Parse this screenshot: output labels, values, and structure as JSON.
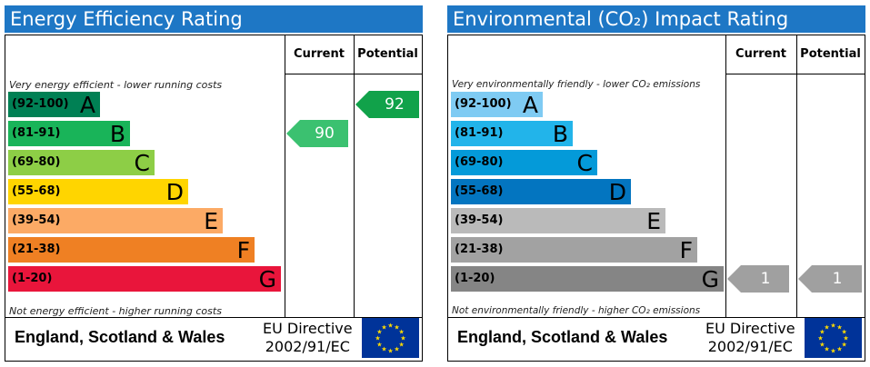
{
  "chart_data": [
    {
      "type": "bar",
      "title": "Energy Efficiency Rating",
      "columns": [
        "Current",
        "Potential"
      ],
      "top_note": "Very energy efficient - lower running costs",
      "bottom_note": "Not energy efficient - higher running costs",
      "bands": [
        {
          "range": "(92-100)",
          "letter": "A",
          "color": "#008054",
          "text_color": "#000000"
        },
        {
          "range": "(81-91)",
          "letter": "B",
          "color": "#19b459",
          "text_color": "#000000"
        },
        {
          "range": "(69-80)",
          "letter": "C",
          "color": "#8dce46",
          "text_color": "#000000"
        },
        {
          "range": "(55-68)",
          "letter": "D",
          "color": "#ffd500",
          "text_color": "#000000"
        },
        {
          "range": "(39-54)",
          "letter": "E",
          "color": "#fcaa65",
          "text_color": "#000000"
        },
        {
          "range": "(21-38)",
          "letter": "F",
          "color": "#ef8023",
          "text_color": "#000000"
        },
        {
          "range": "(1-20)",
          "letter": "G",
          "color": "#e9153b",
          "text_color": "#000000"
        }
      ],
      "current": {
        "value": "90",
        "band": "B",
        "color": "#3bc170"
      },
      "potential": {
        "value": "92",
        "band": "A",
        "color": "#11a24a"
      },
      "footer_place": "England, Scotland & Wales",
      "footer_directive": [
        "EU Directive",
        "2002/91/EC"
      ]
    },
    {
      "type": "bar",
      "title": "Environmental (CO₂) Impact Rating",
      "columns": [
        "Current",
        "Potential"
      ],
      "top_note": "Very environmentally friendly - lower CO₂ emissions",
      "bottom_note": "Not environmentally friendly - higher CO₂ emissions",
      "bands": [
        {
          "range": "(92-100)",
          "letter": "A",
          "color": "#7fcbf3",
          "text_color": "#000000"
        },
        {
          "range": "(81-91)",
          "letter": "B",
          "color": "#22b4ea",
          "text_color": "#000000"
        },
        {
          "range": "(69-80)",
          "letter": "C",
          "color": "#049ad9",
          "text_color": "#000000"
        },
        {
          "range": "(55-68)",
          "letter": "D",
          "color": "#0375c0",
          "text_color": "#000000"
        },
        {
          "range": "(39-54)",
          "letter": "E",
          "color": "#bababa",
          "text_color": "#000000"
        },
        {
          "range": "(21-38)",
          "letter": "F",
          "color": "#a2a2a2",
          "text_color": "#000000"
        },
        {
          "range": "(1-20)",
          "letter": "G",
          "color": "#858585",
          "text_color": "#000000"
        }
      ],
      "current": {
        "value": "1",
        "band": "G",
        "color": "#a0a0a0"
      },
      "potential": {
        "value": "1",
        "band": "G",
        "color": "#a0a0a0"
      },
      "footer_place": "England, Scotland & Wales",
      "footer_directive": [
        "EU Directive",
        "2002/91/EC"
      ]
    }
  ],
  "colors": {
    "title_bar": "#1e77c5",
    "eu_flag": "#003399",
    "eu_stars": "#ffdd00"
  }
}
